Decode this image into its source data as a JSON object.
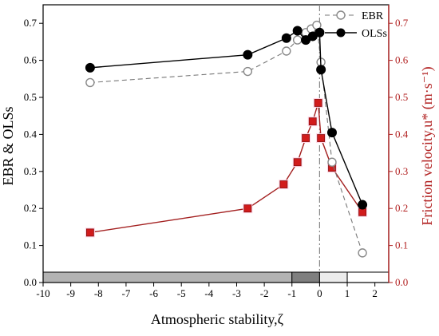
{
  "chart_data": {
    "type": "line",
    "xlabel": "Atmospheric stability,ζ",
    "ylabel_left": "EBR & OLSs",
    "ylabel_right": "Friction velocity,u* (m·s⁻¹)",
    "xlim": [
      -10,
      2.5
    ],
    "ylim_left": [
      0.0,
      0.75
    ],
    "ylim_right": [
      0.0,
      0.75
    ],
    "x_ticks": [
      -10,
      -9,
      -8,
      -7,
      -6,
      -5,
      -4,
      -3,
      -2,
      -1,
      0,
      1,
      2
    ],
    "y_ticks": [
      0.0,
      0.1,
      0.2,
      0.3,
      0.4,
      0.5,
      0.6,
      0.7
    ],
    "legend_position": "top-right",
    "series": [
      {
        "name": "EBR",
        "axis": "left",
        "color": "#777777",
        "x": [
          -8.3,
          -2.6,
          -1.2,
          -0.8,
          -0.5,
          -0.3,
          -0.1,
          0.05,
          0.45,
          1.55
        ],
        "y": [
          0.54,
          0.57,
          0.625,
          0.655,
          0.675,
          0.685,
          0.695,
          0.595,
          0.325,
          0.08
        ]
      },
      {
        "name": "OLSs",
        "axis": "left",
        "color": "#000000",
        "x": [
          -8.3,
          -2.6,
          -1.2,
          -0.8,
          -0.5,
          -0.25,
          0.0,
          0.05,
          0.45,
          1.55
        ],
        "y": [
          0.58,
          0.615,
          0.66,
          0.68,
          0.655,
          0.665,
          0.675,
          0.575,
          0.405,
          0.21
        ]
      },
      {
        "axis": "right",
        "color": "#c0392b",
        "x": [
          -8.3,
          -2.6,
          -1.3,
          -0.8,
          -0.5,
          -0.25,
          -0.05,
          0.05,
          0.45,
          1.55
        ],
        "y": [
          0.135,
          0.2,
          0.265,
          0.325,
          0.39,
          0.435,
          0.485,
          0.39,
          0.31,
          0.19
        ]
      }
    ],
    "stability_bar": [
      {
        "from": -10,
        "to": -1,
        "color": "#b3b3b3"
      },
      {
        "from": -1,
        "to": 0,
        "color": "#7f7f7f"
      },
      {
        "from": 0,
        "to": 1,
        "color": "#ececec"
      },
      {
        "from": 1,
        "to": 2.5,
        "color": "#ffffff"
      }
    ],
    "reference_line_x": 0
  }
}
